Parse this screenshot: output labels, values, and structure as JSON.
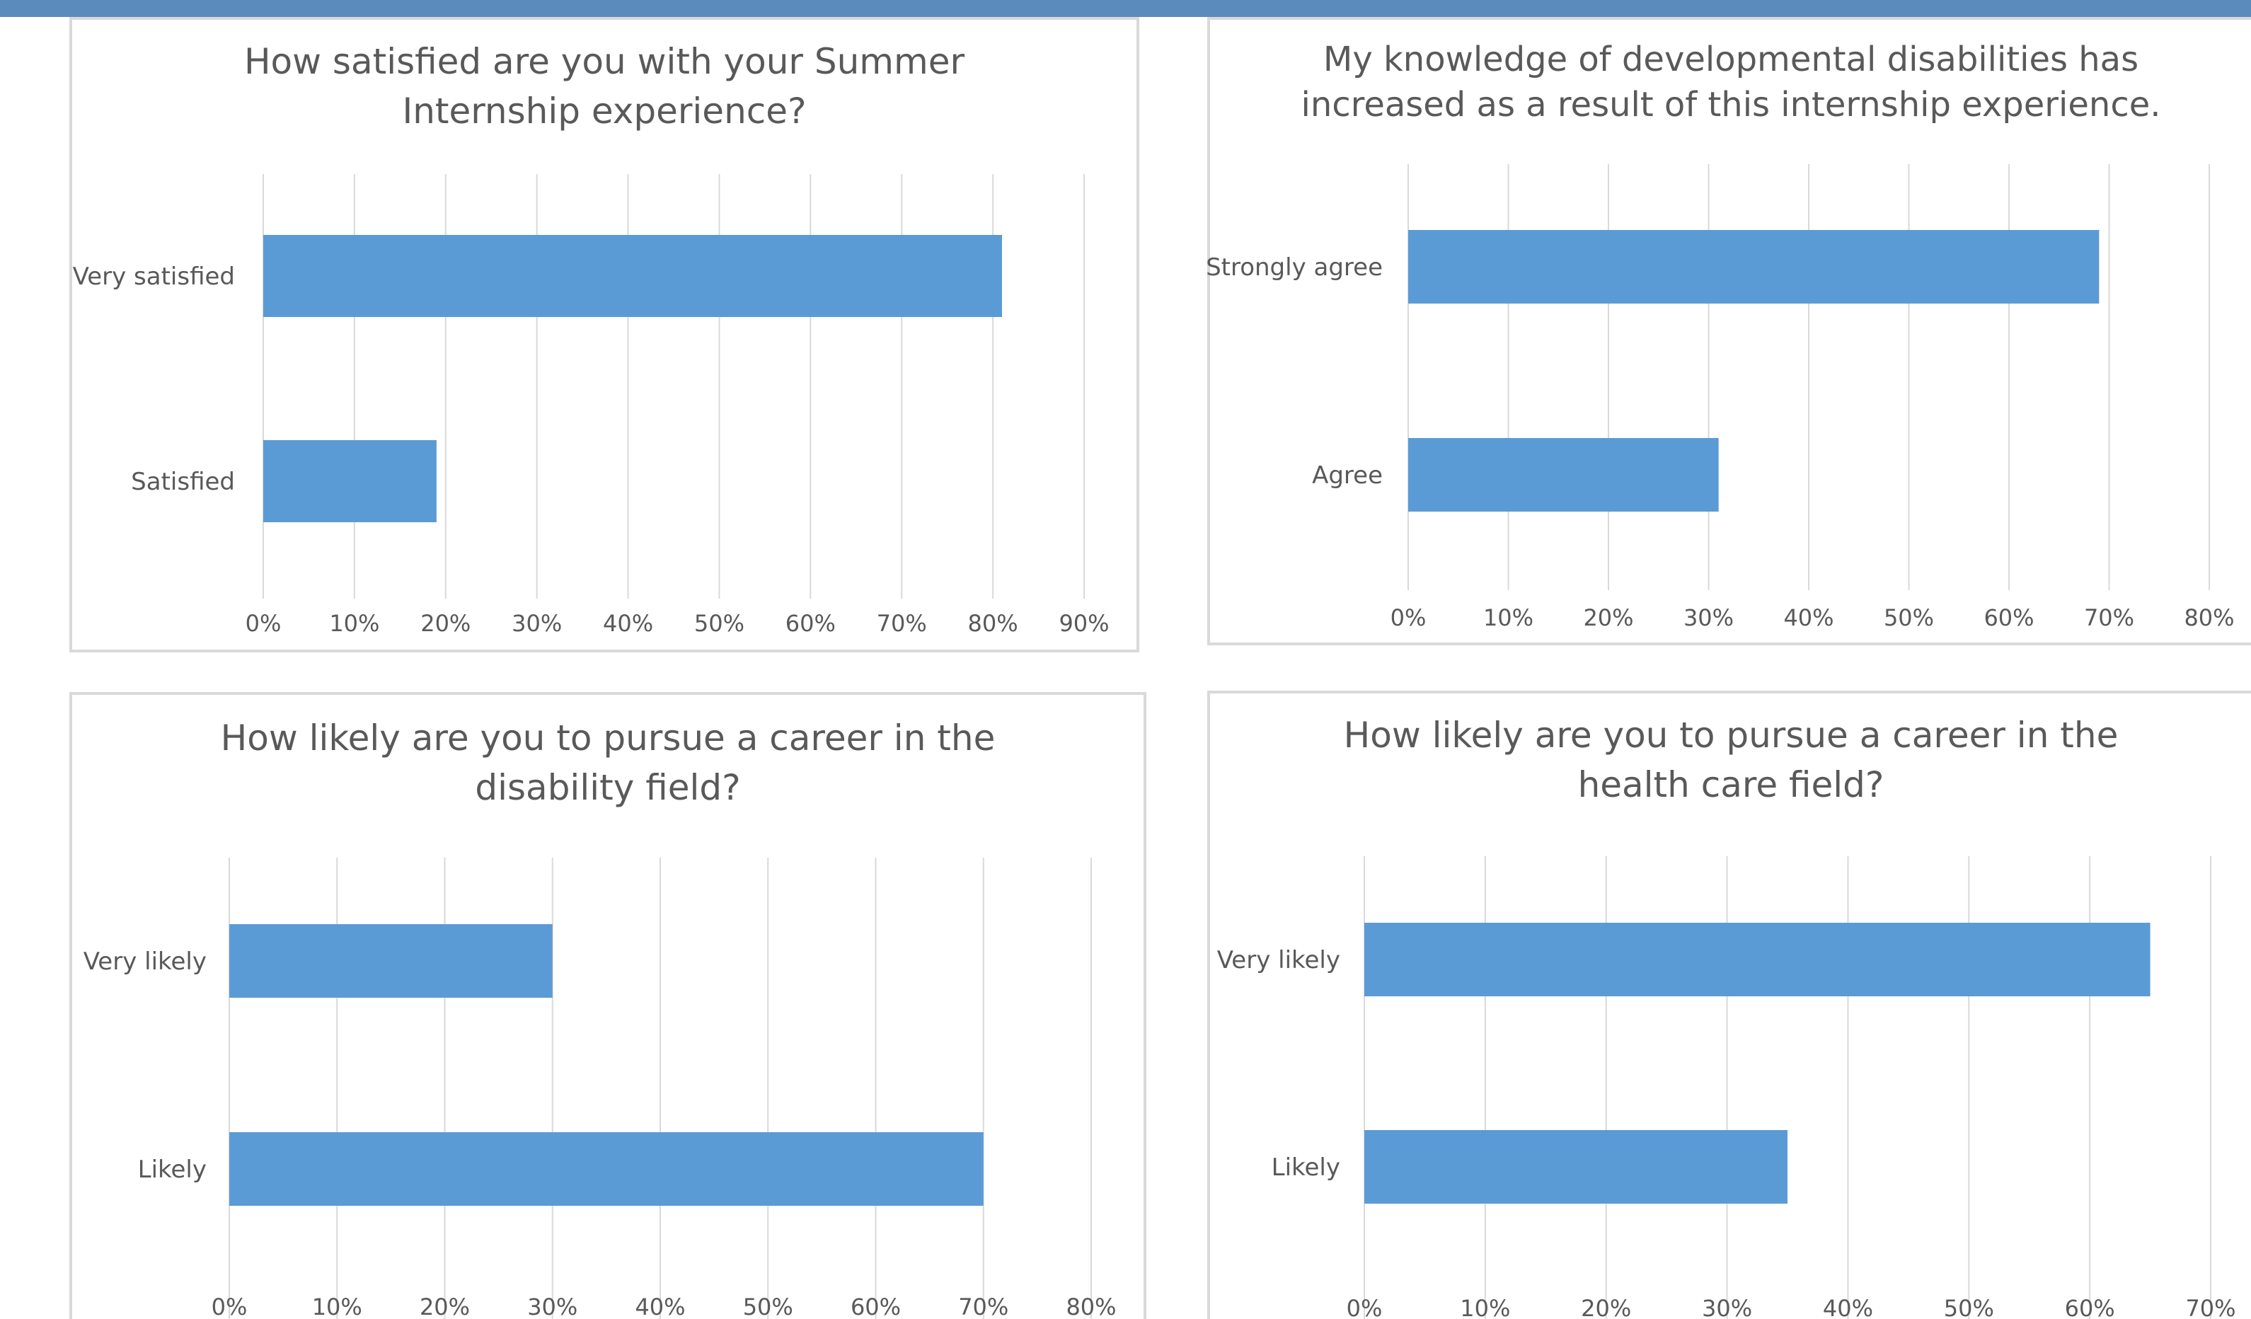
{
  "colors": {
    "top_band": "#5b8bbd",
    "bar": "#5b9bd5",
    "gridline": "#d9d9d9",
    "text": "#595959",
    "panel_border": "#d9d9d9"
  },
  "chart_data": [
    {
      "type": "bar",
      "orientation": "horizontal",
      "title_lines": [
        "How satisfied are you with your Summer",
        "Internship experience?"
      ],
      "categories": [
        "Very satisfied",
        "Satisfied"
      ],
      "values": [
        0.81,
        0.19
      ],
      "xlim": [
        0,
        0.9
      ],
      "ticks": [
        0,
        0.1,
        0.2,
        0.3,
        0.4,
        0.5,
        0.6,
        0.7,
        0.8,
        0.9
      ],
      "tick_labels": [
        "0%",
        "10%",
        "20%",
        "30%",
        "40%",
        "50%",
        "60%",
        "70%",
        "80%",
        "90%"
      ],
      "grid": true,
      "legend": "none"
    },
    {
      "type": "bar",
      "orientation": "horizontal",
      "title_lines": [
        "My knowledge of developmental disabilities has",
        "increased as a result of this internship experience."
      ],
      "categories": [
        "Strongly agree",
        "Agree"
      ],
      "values": [
        0.69,
        0.31
      ],
      "xlim": [
        0,
        0.8
      ],
      "ticks": [
        0,
        0.1,
        0.2,
        0.3,
        0.4,
        0.5,
        0.6,
        0.7,
        0.8
      ],
      "tick_labels": [
        "0%",
        "10%",
        "20%",
        "30%",
        "40%",
        "50%",
        "60%",
        "70%",
        "80%"
      ],
      "grid": true,
      "legend": "none"
    },
    {
      "type": "bar",
      "orientation": "horizontal",
      "title_lines": [
        "How likely are you to pursue a career in the",
        "disability field?"
      ],
      "categories": [
        "Very likely",
        "Likely"
      ],
      "values": [
        0.3,
        0.7
      ],
      "xlim": [
        0,
        0.8
      ],
      "ticks": [
        0,
        0.1,
        0.2,
        0.3,
        0.4,
        0.5,
        0.6,
        0.7,
        0.8
      ],
      "tick_labels": [
        "0%",
        "10%",
        "20%",
        "30%",
        "40%",
        "50%",
        "60%",
        "70%",
        "80%"
      ],
      "grid": true,
      "legend": "none"
    },
    {
      "type": "bar",
      "orientation": "horizontal",
      "title_lines": [
        "How likely are you to pursue a career in the",
        "health care field?"
      ],
      "categories": [
        "Very likely",
        "Likely"
      ],
      "values": [
        0.65,
        0.35
      ],
      "xlim": [
        0,
        0.7
      ],
      "ticks": [
        0,
        0.1,
        0.2,
        0.3,
        0.4,
        0.5,
        0.6,
        0.7
      ],
      "tick_labels": [
        "0%",
        "10%",
        "20%",
        "30%",
        "40%",
        "50%",
        "60%",
        "70%"
      ],
      "grid": true,
      "legend": "none"
    }
  ]
}
